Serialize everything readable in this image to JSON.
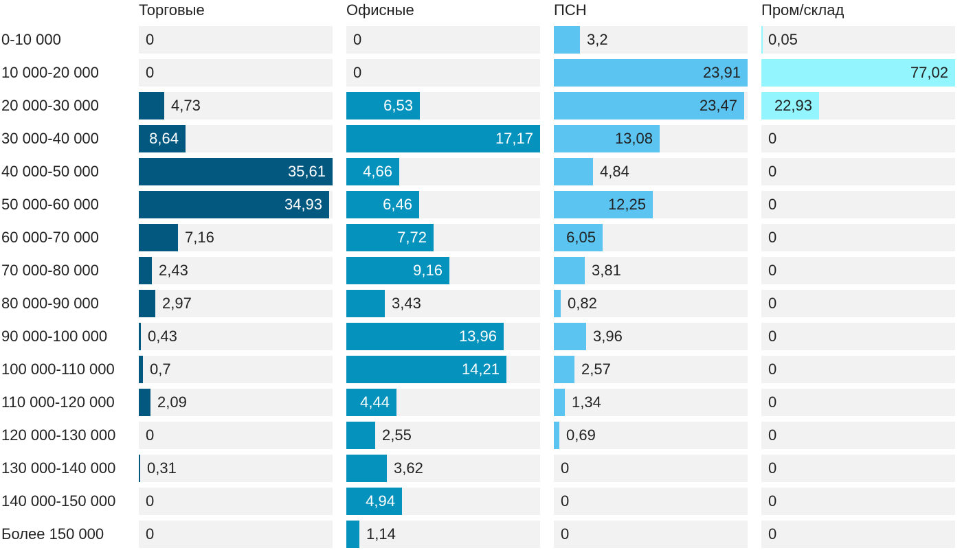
{
  "chart_data": {
    "type": "bar",
    "orientation": "horizontal",
    "layout": "small-multiples",
    "categories": [
      "0-10 000",
      "10 000-20 000",
      "20 000-30 000",
      "30 000-40 000",
      "40 000-50 000",
      "50 000-60 000",
      "60 000-70 000",
      "70 000-80 000",
      "80 000-90 000",
      "90 000-100 000",
      "100 000-110 000",
      "110 000-120 000",
      "120 000-130 000",
      "130 000-140 000",
      "140 000-150 000",
      "Более 150 000"
    ],
    "series": [
      {
        "name": "Торговые",
        "color": "#035880",
        "max": 35.61,
        "values": [
          0,
          0,
          4.73,
          8.64,
          35.61,
          34.93,
          7.16,
          2.43,
          2.97,
          0.43,
          0.7,
          2.09,
          0,
          0.31,
          0,
          0
        ],
        "labels": [
          "0",
          "0",
          "4,73",
          "8,64",
          "35,61",
          "34,93",
          "7,16",
          "2,43",
          "2,97",
          "0,43",
          "0,7",
          "2,09",
          "0",
          "0,31",
          "0",
          "0"
        ]
      },
      {
        "name": "Офисные",
        "color": "#0592bd",
        "max": 17.17,
        "values": [
          0,
          0,
          6.53,
          17.17,
          4.66,
          6.46,
          7.72,
          9.16,
          3.43,
          13.96,
          14.21,
          4.44,
          2.55,
          3.62,
          4.94,
          1.14
        ],
        "labels": [
          "0",
          "0",
          "6,53",
          "17,17",
          "4,66",
          "6,46",
          "7,72",
          "9,16",
          "3,43",
          "13,96",
          "14,21",
          "4,44",
          "2,55",
          "3,62",
          "4,94",
          "1,14"
        ]
      },
      {
        "name": "ПСН",
        "color": "#5bc4f1",
        "max": 23.91,
        "values": [
          3.2,
          23.91,
          23.47,
          13.08,
          4.84,
          12.25,
          6.05,
          3.81,
          0.82,
          3.96,
          2.57,
          1.34,
          0.69,
          0,
          0,
          0
        ],
        "labels": [
          "3,2",
          "23,91",
          "23,47",
          "13,08",
          "4,84",
          "12,25",
          "6,05",
          "3,81",
          "0,82",
          "3,96",
          "2,57",
          "1,34",
          "0,69",
          "0",
          "0",
          "0"
        ]
      },
      {
        "name": "Пром/склад",
        "color": "#93f5fd",
        "max": 77.02,
        "values": [
          0.05,
          77.02,
          22.93,
          0,
          0,
          0,
          0,
          0,
          0,
          0,
          0,
          0,
          0,
          0,
          0,
          0
        ],
        "labels": [
          "0,05",
          "77,02",
          "22,93",
          "0",
          "0",
          "0",
          "0",
          "0",
          "0",
          "0",
          "0",
          "0",
          "0",
          "0",
          "0",
          "0"
        ]
      }
    ],
    "title": "",
    "xlabel": "",
    "ylabel": ""
  }
}
